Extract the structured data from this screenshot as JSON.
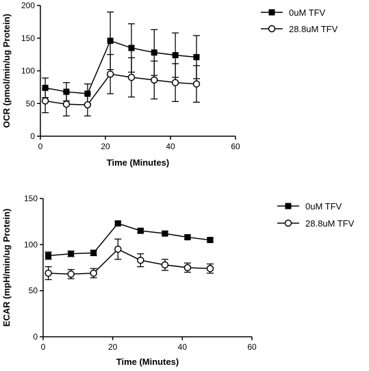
{
  "chart_data": [
    {
      "type": "line",
      "xlabel": "Time (Minutes)",
      "ylabel": "OCR (pmol/min/ug Protein)",
      "xlim": [
        0,
        60
      ],
      "ylim": [
        0,
        200
      ],
      "x_ticks": [
        0,
        20,
        40,
        60
      ],
      "y_ticks": [
        0,
        50,
        100,
        150,
        200
      ],
      "grid": false,
      "legend_position": "right",
      "series": [
        {
          "name": "0uM TFV",
          "marker": "filled-square",
          "x": [
            1.5,
            8,
            14.5,
            21.5,
            28,
            35,
            41.5,
            48
          ],
          "y": [
            74,
            68,
            65,
            146,
            135,
            128,
            124,
            121
          ],
          "err": [
            15,
            14,
            15,
            44,
            37,
            35,
            34,
            33
          ]
        },
        {
          "name": "28.8uM TFV",
          "marker": "open-circle",
          "x": [
            1.5,
            8,
            14.5,
            21.5,
            28,
            35,
            41.5,
            48
          ],
          "y": [
            54,
            49,
            48,
            95,
            90,
            86,
            82,
            80
          ],
          "err": [
            18,
            18,
            17,
            30,
            30,
            29,
            29,
            28
          ]
        }
      ]
    },
    {
      "type": "line",
      "xlabel": "Time (Minutes)",
      "ylabel": "ECAR (mpH/min/ug Protein)",
      "xlim": [
        0,
        60
      ],
      "ylim": [
        0,
        150
      ],
      "x_ticks": [
        0,
        20,
        40,
        60
      ],
      "y_ticks": [
        0,
        50,
        100,
        150
      ],
      "grid": false,
      "legend_position": "right",
      "series": [
        {
          "name": "0uM TFV",
          "marker": "filled-square",
          "x": [
            1.5,
            8,
            14.5,
            21.5,
            28,
            35,
            41.5,
            48
          ],
          "y": [
            88,
            90,
            91,
            123,
            115,
            112,
            108,
            105
          ],
          "err": [
            4,
            3,
            3,
            2,
            2,
            2,
            2,
            2
          ]
        },
        {
          "name": "28.8uM TFV",
          "marker": "open-circle",
          "x": [
            1.5,
            8,
            14.5,
            21.5,
            28,
            35,
            41.5,
            48
          ],
          "y": [
            69,
            68,
            69,
            95,
            83,
            78,
            75,
            74
          ],
          "err": [
            7,
            5,
            5,
            11,
            7,
            6,
            5,
            5
          ]
        }
      ]
    }
  ]
}
